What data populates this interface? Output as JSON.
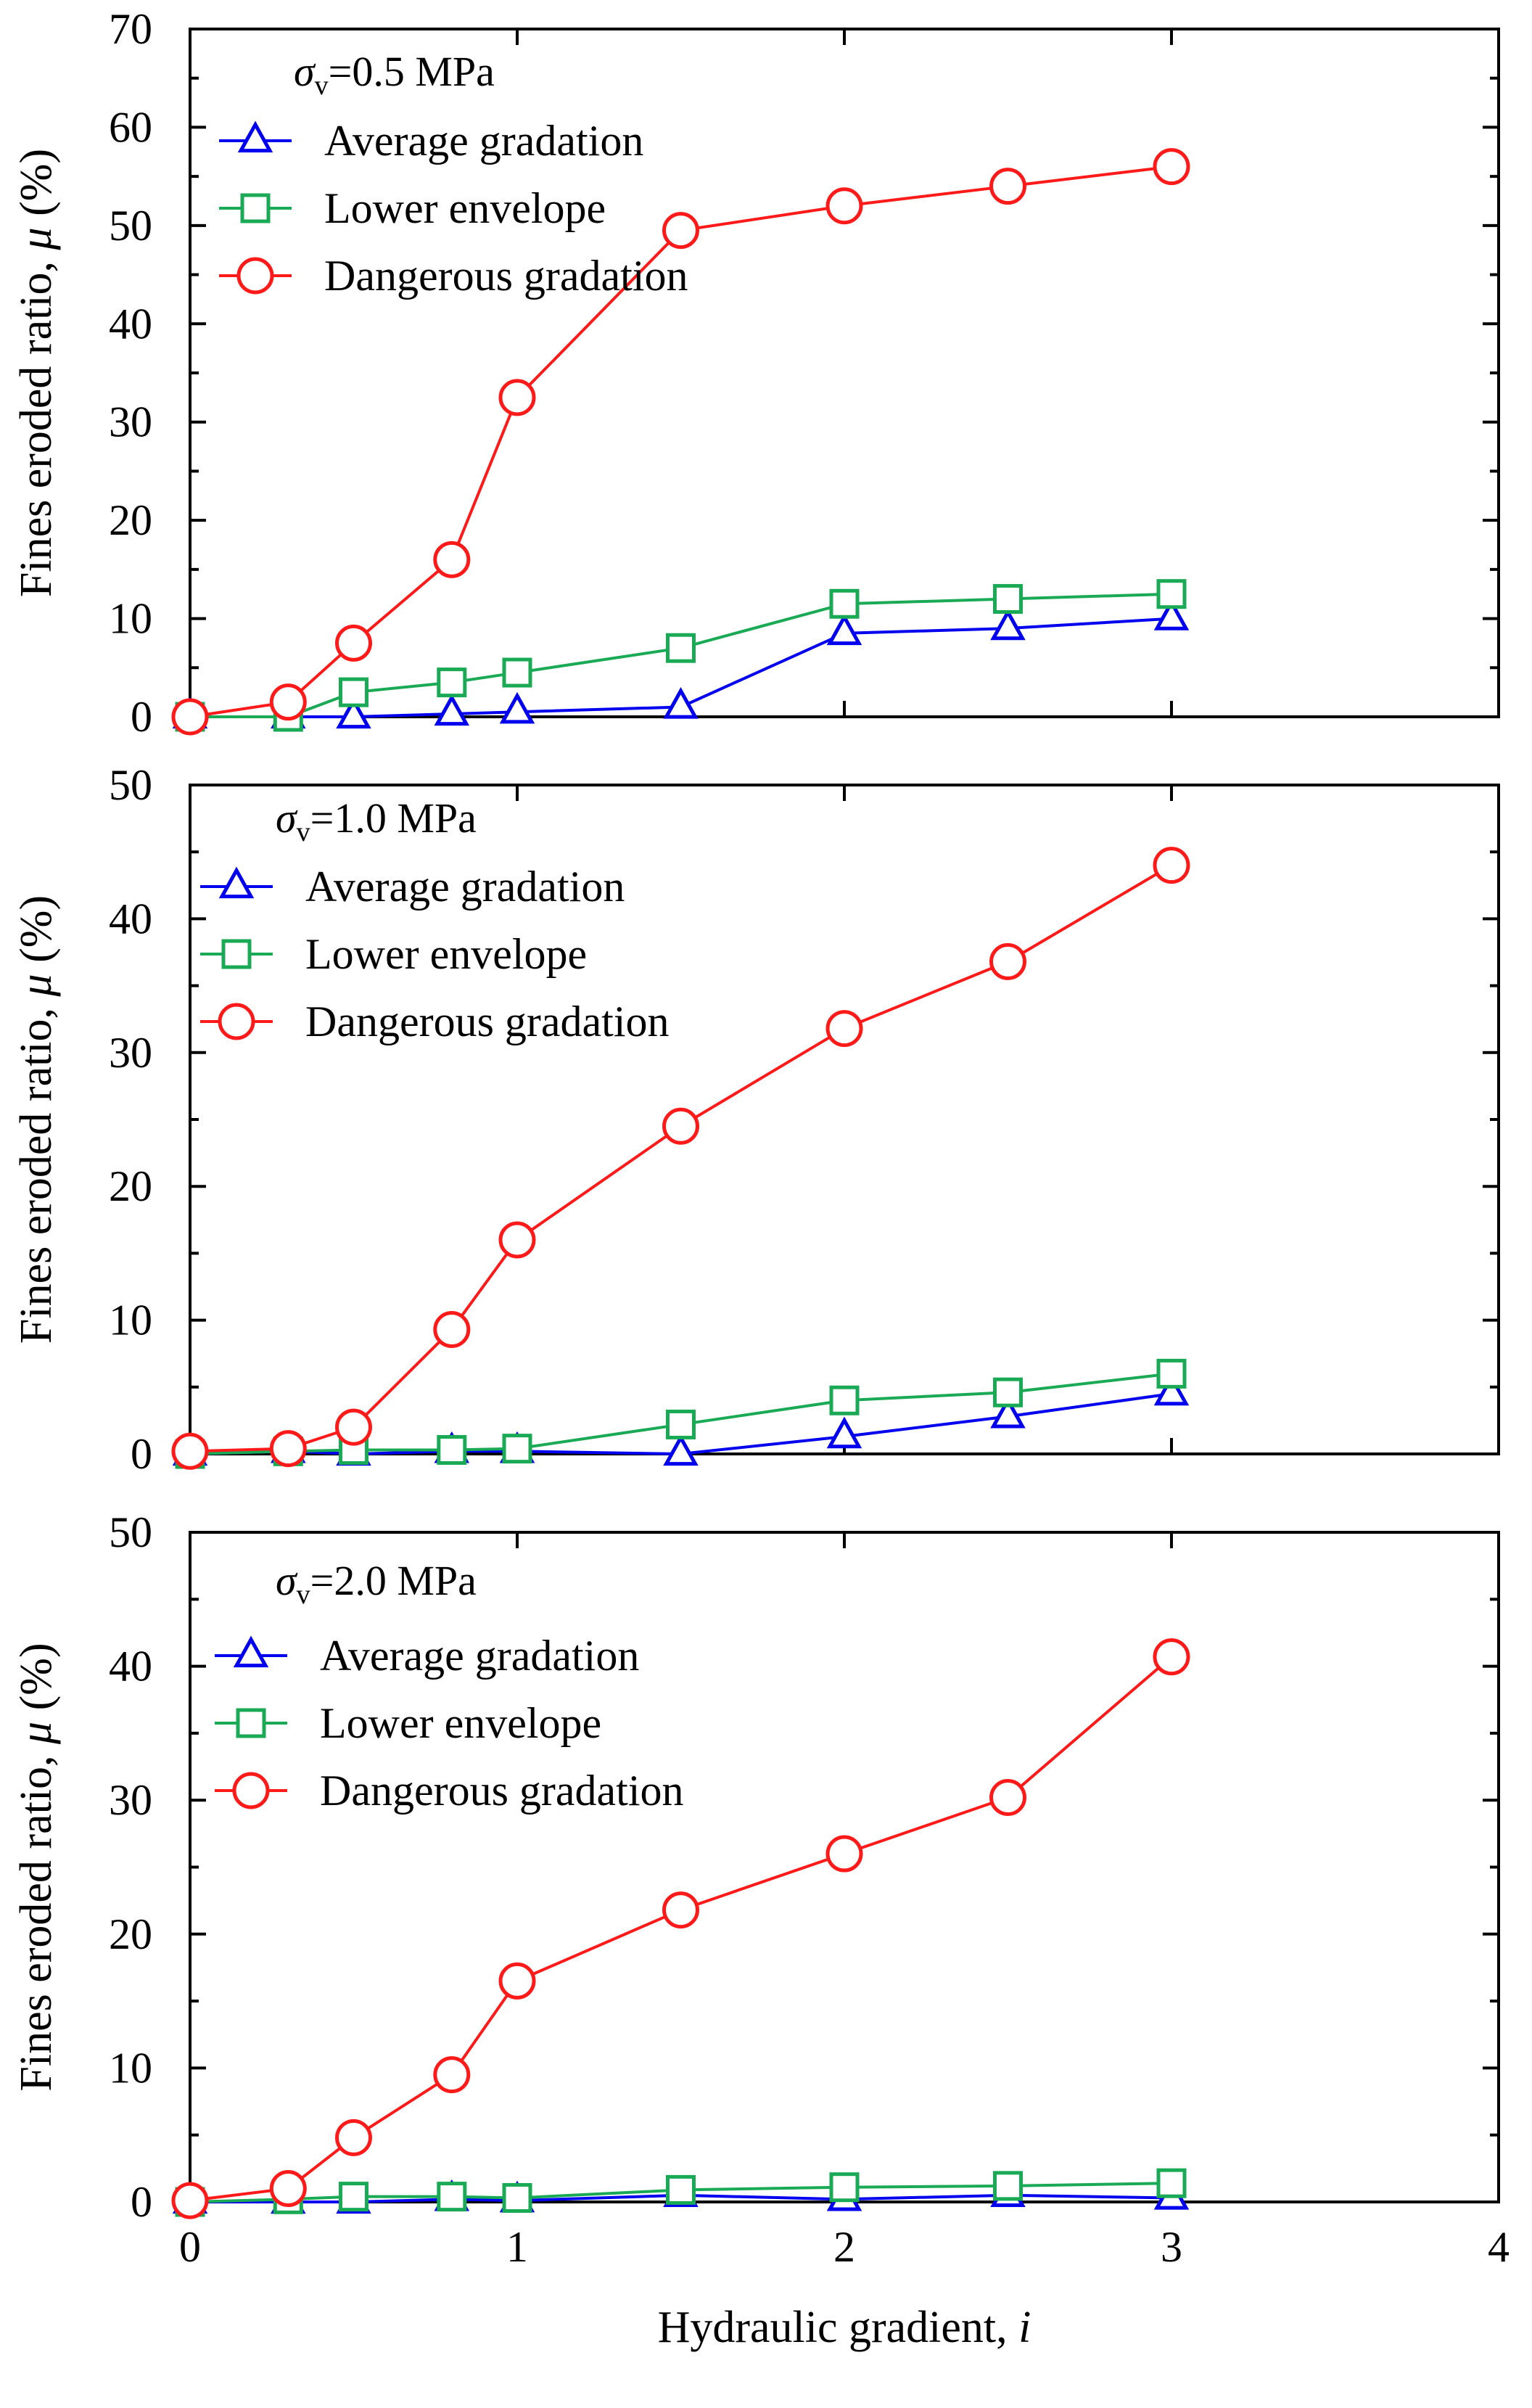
{
  "chart_data": [
    {
      "type": "line",
      "title": "σv=0.5 MPa",
      "stress_symbol": "σ",
      "stress_subscript": "v",
      "stress_value": "=0.5 MPa",
      "xlabel": "Hydraulic gradient, i",
      "ylabel": "Fines eroded ratio, μ (%)",
      "xlim": [
        0,
        4
      ],
      "ylim": [
        0,
        70
      ],
      "y_ticks": [
        0,
        10,
        20,
        30,
        40,
        50,
        60,
        70
      ],
      "series": [
        {
          "name": "Average gradation",
          "marker": "triangle",
          "color": "#0000ee",
          "x": [
            0,
            0.3,
            0.5,
            0.8,
            1.0,
            1.5,
            2.0,
            2.5,
            3.0
          ],
          "values": [
            0,
            0,
            0,
            0.3,
            0.5,
            1.0,
            8.5,
            9.0,
            10.0
          ]
        },
        {
          "name": "Lower envelope",
          "marker": "square",
          "color": "#1aaa55",
          "x": [
            0,
            0.3,
            0.5,
            0.8,
            1.0,
            1.5,
            2.0,
            2.5,
            3.0
          ],
          "values": [
            0,
            0,
            2.5,
            3.5,
            4.5,
            7.0,
            11.5,
            12.0,
            12.5
          ]
        },
        {
          "name": "Dangerous gradation",
          "marker": "circle",
          "color": "#ff1a1a",
          "x": [
            0,
            0.3,
            0.5,
            0.8,
            1.0,
            1.5,
            2.0,
            2.5,
            3.0
          ],
          "values": [
            0,
            1.5,
            7.5,
            16.0,
            32.5,
            49.5,
            52.0,
            54.0,
            56.0
          ]
        }
      ]
    },
    {
      "type": "line",
      "title": "σv=1.0 MPa",
      "stress_symbol": "σ",
      "stress_subscript": "v",
      "stress_value": "=1.0 MPa",
      "xlabel": "Hydraulic gradient, i",
      "ylabel": "Fines eroded ratio, μ (%)",
      "xlim": [
        0,
        4
      ],
      "ylim": [
        0,
        50
      ],
      "y_ticks": [
        0,
        10,
        20,
        30,
        40,
        50
      ],
      "series": [
        {
          "name": "Average gradation",
          "marker": "triangle",
          "color": "#0000ee",
          "x": [
            0,
            0.3,
            0.5,
            0.8,
            1.0,
            1.5,
            2.0,
            2.5,
            3.0
          ],
          "values": [
            0,
            0.2,
            0,
            0.2,
            0.2,
            0,
            1.3,
            2.8,
            4.5
          ]
        },
        {
          "name": "Lower envelope",
          "marker": "square",
          "color": "#1aaa55",
          "x": [
            0,
            0.3,
            0.5,
            0.8,
            1.0,
            1.5,
            2.0,
            2.5,
            3.0
          ],
          "values": [
            0,
            0.2,
            0.3,
            0.3,
            0.4,
            2.2,
            4.0,
            4.6,
            6.0
          ]
        },
        {
          "name": "Dangerous gradation",
          "marker": "circle",
          "color": "#ff1a1a",
          "x": [
            0,
            0.3,
            0.5,
            0.8,
            1.0,
            1.5,
            2.0,
            2.5,
            3.0
          ],
          "values": [
            0.2,
            0.4,
            2.0,
            9.3,
            16.0,
            24.5,
            31.8,
            36.8,
            44.0
          ]
        }
      ]
    },
    {
      "type": "line",
      "title": "σv=2.0 MPa",
      "stress_symbol": "σ",
      "stress_subscript": "v",
      "stress_value": "=2.0 MPa",
      "xlabel": "Hydraulic gradient, i",
      "ylabel": "Fines eroded ratio, μ (%)",
      "xlim": [
        0,
        4
      ],
      "ylim": [
        0,
        50
      ],
      "y_ticks": [
        0,
        10,
        20,
        30,
        40,
        50
      ],
      "x_ticks": [
        0,
        1,
        2,
        3,
        4
      ],
      "series": [
        {
          "name": "Average gradation",
          "marker": "triangle",
          "color": "#0000ee",
          "x": [
            0,
            0.3,
            0.5,
            0.8,
            1.0,
            1.5,
            2.0,
            2.5,
            3.0
          ],
          "values": [
            0,
            0,
            0,
            0.2,
            0.1,
            0.5,
            0.2,
            0.5,
            0.3
          ]
        },
        {
          "name": "Lower envelope",
          "marker": "square",
          "color": "#1aaa55",
          "x": [
            0,
            0.3,
            0.5,
            0.8,
            1.0,
            1.5,
            2.0,
            2.5,
            3.0
          ],
          "values": [
            0,
            0.2,
            0.4,
            0.4,
            0.3,
            0.9,
            1.1,
            1.2,
            1.4
          ]
        },
        {
          "name": "Dangerous gradation",
          "marker": "circle",
          "color": "#ff1a1a",
          "x": [
            0,
            0.3,
            0.5,
            0.8,
            1.0,
            1.5,
            2.0,
            2.5,
            3.0
          ],
          "values": [
            0.1,
            1.0,
            4.8,
            9.5,
            16.5,
            21.8,
            26.0,
            30.2,
            40.7
          ]
        }
      ]
    }
  ]
}
